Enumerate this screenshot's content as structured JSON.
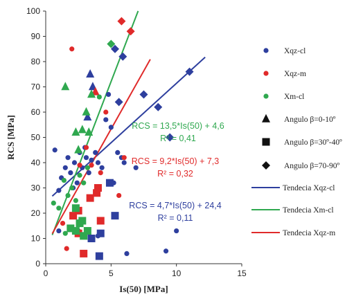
{
  "chart_data": {
    "type": "scatter",
    "xlabel": "Is(50) [MPa]",
    "ylabel": "RCS [MPa]",
    "xlim": [
      0,
      15
    ],
    "ylim": [
      0,
      100
    ],
    "xticks": [
      0,
      5,
      10,
      15
    ],
    "yticks": [
      0,
      10,
      20,
      30,
      40,
      50,
      60,
      70,
      80,
      90,
      100
    ],
    "grid": false,
    "legend_position": "right",
    "colors": {
      "Xqz-cl": "#2e3f9e",
      "Xqz-m": "#e02a2a",
      "Xm-cl": "#2fa84f"
    },
    "series": [
      {
        "name": "Xqz-cl",
        "color": "#2e3f9e",
        "points": [
          {
            "x": 0.7,
            "y": 45,
            "shape": "circle"
          },
          {
            "x": 1.0,
            "y": 29,
            "shape": "circle"
          },
          {
            "x": 1.2,
            "y": 34,
            "shape": "circle"
          },
          {
            "x": 1.5,
            "y": 38,
            "shape": "circle"
          },
          {
            "x": 1.7,
            "y": 42,
            "shape": "circle"
          },
          {
            "x": 1.9,
            "y": 36,
            "shape": "circle"
          },
          {
            "x": 2.1,
            "y": 30,
            "shape": "circle"
          },
          {
            "x": 2.2,
            "y": 40,
            "shape": "circle"
          },
          {
            "x": 2.4,
            "y": 32,
            "shape": "circle"
          },
          {
            "x": 2.6,
            "y": 44,
            "shape": "circle"
          },
          {
            "x": 2.8,
            "y": 38,
            "shape": "circle"
          },
          {
            "x": 3.0,
            "y": 46,
            "shape": "circle"
          },
          {
            "x": 3.1,
            "y": 42,
            "shape": "circle"
          },
          {
            "x": 3.3,
            "y": 36,
            "shape": "circle"
          },
          {
            "x": 3.5,
            "y": 41,
            "shape": "circle"
          },
          {
            "x": 3.8,
            "y": 44,
            "shape": "circle"
          },
          {
            "x": 4.0,
            "y": 40,
            "shape": "circle"
          },
          {
            "x": 4.3,
            "y": 38,
            "shape": "circle"
          },
          {
            "x": 4.6,
            "y": 57,
            "shape": "circle"
          },
          {
            "x": 4.8,
            "y": 67,
            "shape": "circle"
          },
          {
            "x": 5.0,
            "y": 54,
            "shape": "circle"
          },
          {
            "x": 5.2,
            "y": 32,
            "shape": "circle"
          },
          {
            "x": 5.5,
            "y": 44,
            "shape": "circle"
          },
          {
            "x": 5.8,
            "y": 42,
            "shape": "circle"
          },
          {
            "x": 6.0,
            "y": 40,
            "shape": "circle"
          },
          {
            "x": 6.2,
            "y": 4,
            "shape": "circle"
          },
          {
            "x": 6.9,
            "y": 38,
            "shape": "circle"
          },
          {
            "x": 9.2,
            "y": 5,
            "shape": "circle"
          },
          {
            "x": 10.0,
            "y": 13,
            "shape": "circle"
          },
          {
            "x": 2.5,
            "y": 13,
            "shape": "circle"
          },
          {
            "x": 4.0,
            "y": 11,
            "shape": "circle"
          },
          {
            "x": 1.0,
            "y": 13,
            "shape": "circle"
          },
          {
            "x": 5.3,
            "y": 85,
            "shape": "diamond"
          },
          {
            "x": 5.9,
            "y": 82,
            "shape": "diamond"
          },
          {
            "x": 5.6,
            "y": 64,
            "shape": "diamond"
          },
          {
            "x": 7.5,
            "y": 67,
            "shape": "diamond"
          },
          {
            "x": 8.6,
            "y": 62,
            "shape": "diamond"
          },
          {
            "x": 9.5,
            "y": 50,
            "shape": "diamond"
          },
          {
            "x": 11.0,
            "y": 76,
            "shape": "diamond"
          },
          {
            "x": 3.4,
            "y": 75,
            "shape": "triangle"
          },
          {
            "x": 3.6,
            "y": 70,
            "shape": "triangle"
          },
          {
            "x": 3.2,
            "y": 58,
            "shape": "triangle"
          },
          {
            "x": 4.9,
            "y": 32,
            "shape": "square"
          },
          {
            "x": 5.3,
            "y": 19,
            "shape": "square"
          },
          {
            "x": 3.5,
            "y": 10,
            "shape": "square"
          },
          {
            "x": 4.2,
            "y": 12,
            "shape": "square"
          },
          {
            "x": 4.1,
            "y": 3,
            "shape": "square"
          }
        ]
      },
      {
        "name": "Xqz-m",
        "color": "#e02a2a",
        "points": [
          {
            "x": 1.3,
            "y": 16,
            "shape": "circle"
          },
          {
            "x": 1.6,
            "y": 6,
            "shape": "circle"
          },
          {
            "x": 2.0,
            "y": 85,
            "shape": "circle"
          },
          {
            "x": 2.6,
            "y": 39,
            "shape": "circle"
          },
          {
            "x": 3.1,
            "y": 46,
            "shape": "circle"
          },
          {
            "x": 3.5,
            "y": 39,
            "shape": "circle"
          },
          {
            "x": 4.2,
            "y": 36,
            "shape": "circle"
          },
          {
            "x": 4.6,
            "y": 60,
            "shape": "circle"
          },
          {
            "x": 5.6,
            "y": 27,
            "shape": "circle"
          },
          {
            "x": 6.0,
            "y": 42,
            "shape": "circle"
          },
          {
            "x": 5.8,
            "y": 96,
            "shape": "diamond"
          },
          {
            "x": 6.5,
            "y": 92,
            "shape": "diamond"
          },
          {
            "x": 3.8,
            "y": 68,
            "shape": "triangle"
          },
          {
            "x": 2.1,
            "y": 19,
            "shape": "square"
          },
          {
            "x": 2.5,
            "y": 21,
            "shape": "square"
          },
          {
            "x": 3.4,
            "y": 26,
            "shape": "square"
          },
          {
            "x": 3.9,
            "y": 28,
            "shape": "square"
          },
          {
            "x": 4.0,
            "y": 30,
            "shape": "square"
          },
          {
            "x": 4.2,
            "y": 17,
            "shape": "square"
          },
          {
            "x": 2.9,
            "y": 4,
            "shape": "square"
          },
          {
            "x": 2.5,
            "y": 12,
            "shape": "square"
          }
        ]
      },
      {
        "name": "Xm-cl",
        "color": "#2fa84f",
        "points": [
          {
            "x": 0.6,
            "y": 24,
            "shape": "circle"
          },
          {
            "x": 1.0,
            "y": 22,
            "shape": "circle"
          },
          {
            "x": 1.4,
            "y": 33,
            "shape": "circle"
          },
          {
            "x": 1.7,
            "y": 27,
            "shape": "circle"
          },
          {
            "x": 2.0,
            "y": 30,
            "shape": "circle"
          },
          {
            "x": 2.3,
            "y": 25,
            "shape": "circle"
          },
          {
            "x": 2.6,
            "y": 35,
            "shape": "circle"
          },
          {
            "x": 2.9,
            "y": 32,
            "shape": "circle"
          },
          {
            "x": 3.2,
            "y": 38,
            "shape": "circle"
          },
          {
            "x": 1.5,
            "y": 12,
            "shape": "circle"
          },
          {
            "x": 4.1,
            "y": 66,
            "shape": "circle"
          },
          {
            "x": 5.0,
            "y": 87,
            "shape": "diamond"
          },
          {
            "x": 1.5,
            "y": 70,
            "shape": "triangle"
          },
          {
            "x": 2.3,
            "y": 52,
            "shape": "triangle"
          },
          {
            "x": 2.8,
            "y": 53,
            "shape": "triangle"
          },
          {
            "x": 3.1,
            "y": 60,
            "shape": "triangle"
          },
          {
            "x": 3.3,
            "y": 52,
            "shape": "triangle"
          },
          {
            "x": 3.5,
            "y": 67,
            "shape": "triangle"
          },
          {
            "x": 2.5,
            "y": 45,
            "shape": "triangle"
          },
          {
            "x": 1.9,
            "y": 14,
            "shape": "square"
          },
          {
            "x": 2.3,
            "y": 22,
            "shape": "square"
          },
          {
            "x": 2.6,
            "y": 16,
            "shape": "square"
          },
          {
            "x": 2.9,
            "y": 11,
            "shape": "square"
          },
          {
            "x": 2.8,
            "y": 17,
            "shape": "square"
          },
          {
            "x": 3.2,
            "y": 13,
            "shape": "square"
          },
          {
            "x": 2.3,
            "y": 13,
            "shape": "square"
          }
        ]
      }
    ],
    "trendlines": [
      {
        "name": "Tendecia Xqz-cl",
        "color": "#2e3f9e",
        "slope": 4.7,
        "intercept": 24.4,
        "x_start": 0.5,
        "x_end": 12.2
      },
      {
        "name": "Tendecia Xm-cl",
        "color": "#2fa84f",
        "slope": 13.5,
        "intercept": 4.6,
        "x_start": 0.5,
        "x_end": 7.07
      },
      {
        "name": "Tendecia Xqz-m",
        "color": "#e02a2a",
        "slope": 9.2,
        "intercept": 7.3,
        "x_start": 0.5,
        "x_end": 8.0
      }
    ],
    "annotations": [
      {
        "color": "#2fa84f",
        "equation": "RCS = 13,5*Is(50) + 4,6",
        "r2": "R² = 0,41"
      },
      {
        "color": "#e02a2a",
        "equation": "RCS = 9,2*Is(50) + 7,3",
        "r2": "R² = 0,32"
      },
      {
        "color": "#2e3f9e",
        "equation": "RCS = 4,7*Is(50) + 24,4",
        "r2": "R² = 0,11"
      }
    ],
    "legend": [
      {
        "label": "Xqz-cl",
        "kind": "marker",
        "shape": "circle",
        "color": "#2e3f9e"
      },
      {
        "label": "Xqz-m",
        "kind": "marker",
        "shape": "circle",
        "color": "#e02a2a"
      },
      {
        "label": "Xm-cl",
        "kind": "marker",
        "shape": "circle",
        "color": "#2fa84f"
      },
      {
        "label": "Angulo β=0-10º",
        "kind": "marker",
        "shape": "triangle",
        "color": "#111111"
      },
      {
        "label": "Angulo β=30º-40º",
        "kind": "marker",
        "shape": "square",
        "color": "#111111"
      },
      {
        "label": "Angulo β=70-90º",
        "kind": "marker",
        "shape": "diamond",
        "color": "#111111"
      },
      {
        "label": "Tendecia Xqz-cl",
        "kind": "line",
        "color": "#2e3f9e"
      },
      {
        "label": "Tendecia Xm-cl",
        "kind": "line",
        "color": "#2fa84f"
      },
      {
        "label": "Tendecia Xqz-m",
        "kind": "line",
        "color": "#e02a2a"
      }
    ]
  }
}
